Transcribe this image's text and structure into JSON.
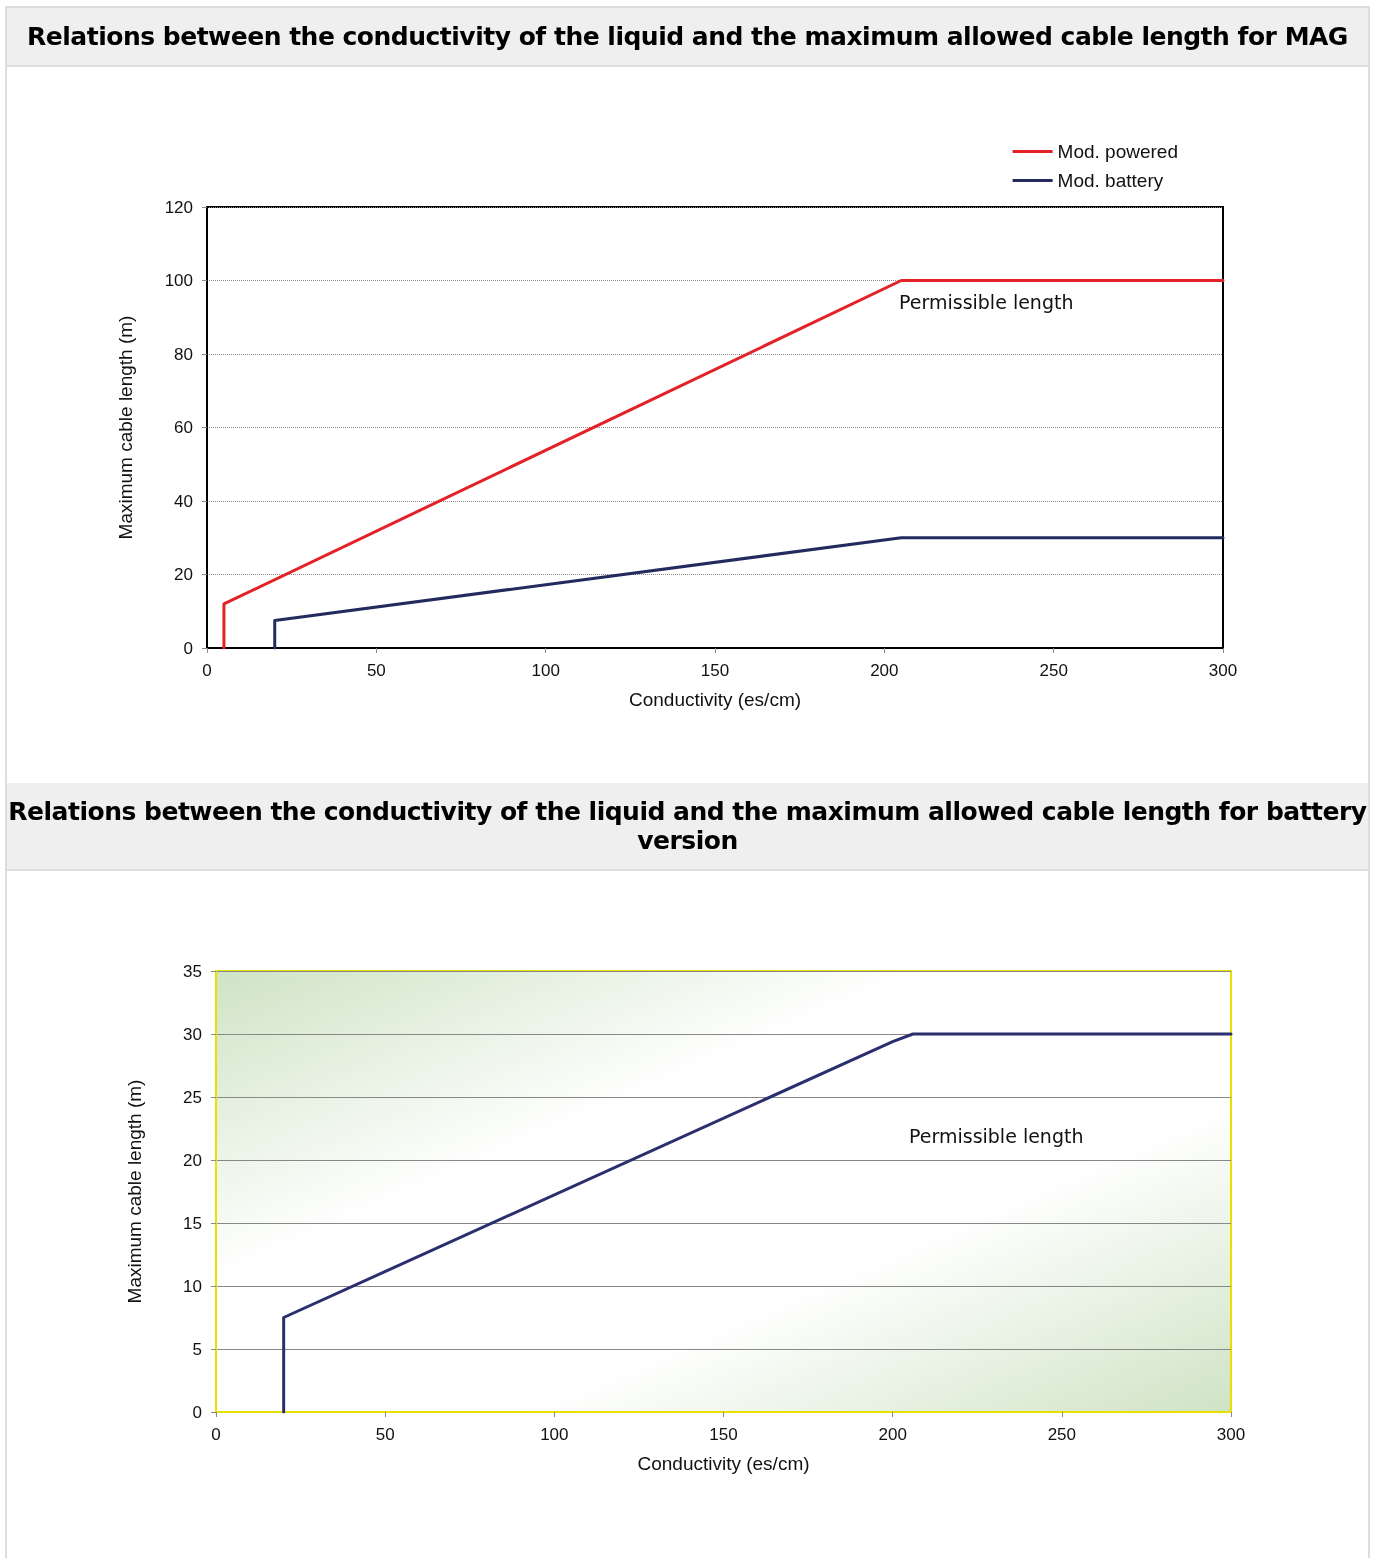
{
  "chart_data": [
    {
      "type": "line",
      "title": "Relations between the conductivity of the liquid and the maximum allowed cable length for MAG",
      "xlabel": "Conductivity (es/cm)",
      "ylabel": "Maximum cable length (m)",
      "xlim": [
        0,
        300
      ],
      "xticks": [
        0,
        50,
        100,
        150,
        200,
        250,
        300
      ],
      "ylim": [
        0,
        120
      ],
      "yticks": [
        0,
        20,
        40,
        60,
        80,
        100,
        120
      ],
      "grid": "y",
      "legend": "top right",
      "marker": "none",
      "line_style": "solid",
      "annotations": [
        "Permissible length"
      ],
      "series": [
        {
          "name": "Mod. powered",
          "color": "#e32228",
          "x": [
            5,
            5,
            205,
            300
          ],
          "values": [
            0,
            12,
            100,
            100
          ]
        },
        {
          "name": "Mod. battery",
          "color": "#232b5e",
          "x": [
            20,
            20,
            205,
            300
          ],
          "values": [
            0,
            7.5,
            30,
            30
          ]
        }
      ]
    },
    {
      "type": "line",
      "title": "Relations between the conductivity of the liquid and the maximum allowed cable length for battery version",
      "xlabel": "Conductivity (es/cm)",
      "ylabel": "Maximum cable length (m)",
      "xlim": [
        0,
        300
      ],
      "xticks": [
        0,
        50,
        100,
        150,
        200,
        250,
        300
      ],
      "ylim": [
        0,
        35
      ],
      "yticks": [
        0,
        5,
        10,
        15,
        20,
        25,
        30,
        35
      ],
      "grid": "y",
      "legend": false,
      "marker": "none",
      "line_style": "solid",
      "annotations": [
        "Permissible length"
      ],
      "series": [
        {
          "color": "#2b2f6e",
          "x": [
            20,
            20,
            200,
            206,
            300
          ],
          "values": [
            0,
            7.5,
            29.4,
            30,
            30
          ]
        }
      ]
    }
  ]
}
